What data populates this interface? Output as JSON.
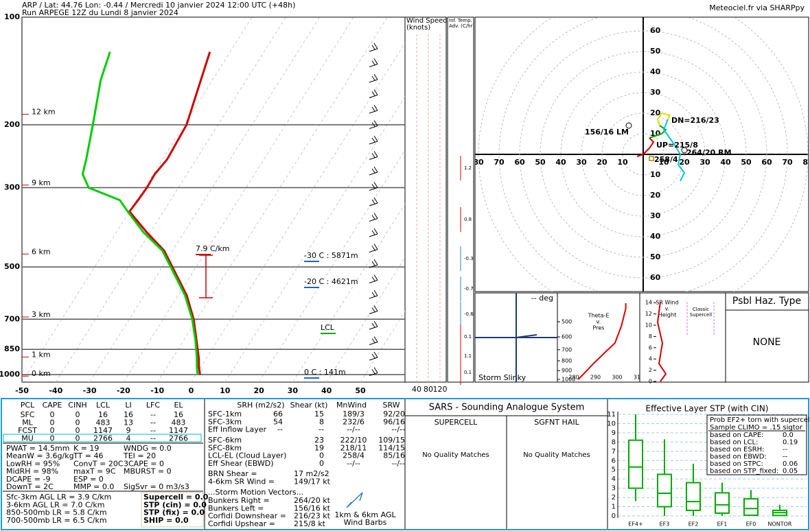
{
  "header": {
    "title": "ARP / Lat: 44.76 Lon: -0.44 / Mercredi 10 janvier 2024 12:00 UTC (+48h)",
    "run": "Run ARPEGE 12Z du Lundi 8 janvier 2024",
    "credit": "Meteociel.fr via SHARPpy"
  },
  "chart_data": [
    {
      "type": "skewt",
      "log_y": true,
      "ylim": [
        1050,
        100
      ],
      "yticks": [
        100,
        200,
        300,
        500,
        700,
        850,
        1000
      ],
      "xlim": [
        -50,
        50
      ],
      "xticks": [
        -50,
        -40,
        -30,
        -20,
        -10,
        0,
        10,
        20,
        30,
        40,
        50
      ],
      "pressure": [
        1000,
        950,
        900,
        850,
        800,
        700,
        600,
        500,
        450,
        400,
        350,
        325,
        300,
        275,
        250,
        200,
        150,
        125
      ],
      "series": [
        {
          "color": "#cc0000",
          "values": [
            1.2,
            -0.6,
            -2.2,
            -4.2,
            -6.3,
            -11,
            -17.5,
            -27,
            -32.5,
            -41,
            -50,
            -49.6,
            -49.3,
            -49.5,
            -48.6,
            -49.3,
            -53.4,
            -56
          ]
        },
        {
          "color": "#00cc00",
          "values": [
            0.5,
            -1.2,
            -2.8,
            -4.6,
            -6.6,
            -11.4,
            -18,
            -27.5,
            -33,
            -42,
            -50.5,
            -55,
            -66.5,
            -70.8,
            -72.5,
            -77,
            -83,
            -85.5
          ]
        }
      ],
      "height_labels": [
        {
          "value": 187,
          "label": "12 km"
        },
        {
          "value": 295,
          "label": "9 km"
        },
        {
          "value": 460,
          "label": "6 km"
        },
        {
          "value": 690,
          "label": "3 km"
        },
        {
          "value": 893,
          "label": "1 km"
        },
        {
          "value": 1010,
          "label": "0 km"
        }
      ],
      "annotations": [
        "7.9 C/km",
        "-30 C : 5871m",
        "-20 C : 4621m",
        "0 C : 141m",
        "LCL"
      ]
    },
    {
      "type": "hodograph",
      "rings": [
        10,
        20,
        30,
        40,
        50,
        60,
        70,
        80
      ],
      "series": [
        {
          "color": "#cc0000",
          "u": [
            -3,
            0,
            3,
            5,
            3
          ],
          "v": [
            -1,
            0,
            3,
            6,
            8
          ]
        },
        {
          "color": "#00aa00",
          "u": [
            3,
            6,
            9,
            11,
            8
          ],
          "v": [
            8,
            9,
            10,
            12,
            14
          ]
        },
        {
          "color": "#dddd00",
          "u": [
            8,
            7,
            9,
            13,
            12
          ],
          "v": [
            14,
            17,
            20,
            19,
            17
          ]
        },
        {
          "color": "#00c8dc",
          "u": [
            12,
            10,
            15,
            18,
            17,
            20,
            18
          ],
          "v": [
            17,
            12,
            5,
            0,
            -5,
            -9,
            -13
          ]
        }
      ],
      "markers": [
        {
          "label": "156/16 LM",
          "u": -7,
          "v": 14
        },
        {
          "label": "264/20 RM",
          "u": 20,
          "v": 2
        },
        {
          "label": "258/4",
          "u": 4,
          "v": -2
        }
      ],
      "annotations": [
        "DN=216/23",
        "UP=215/8"
      ]
    },
    {
      "type": "box",
      "title": "Effective Layer STP (with CIN)",
      "color": "#00aa00",
      "ylim": [
        0,
        11
      ],
      "yticks": [
        0,
        1,
        2,
        3,
        4,
        5,
        6,
        7,
        8,
        9,
        10,
        11
      ],
      "categories": [
        "EF4+",
        "EF3",
        "EF2",
        "EF1",
        "EF0",
        "NONTOR"
      ],
      "whislo": [
        1.6,
        0,
        0,
        0,
        0,
        0
      ],
      "q1": [
        3.0,
        1.0,
        0.6,
        0.3,
        0.07,
        0.05
      ],
      "med": [
        5.3,
        2.45,
        1.55,
        1.2,
        0.8,
        0.35
      ],
      "q3": [
        8.2,
        4.5,
        3.6,
        2.5,
        1.85,
        0.6
      ],
      "whishi": [
        11,
        8.3,
        5.65,
        3.6,
        2.8,
        1.2
      ],
      "legend": {
        "lines": [
          "Prob EF2+ torn with supercell",
          "Sample CLIMO = .15 sigtor"
        ],
        "rows": [
          [
            "based on CAPE:",
            "0.0"
          ],
          [
            "based on LCL:",
            "0.19"
          ],
          [
            "based on ESRH:",
            "--"
          ],
          [
            "based on EBWD:",
            "--"
          ],
          [
            "based on STPC:",
            "0.06"
          ],
          [
            "based on STP_fixed:",
            "0.05"
          ]
        ],
        "row_colors": [
          "#d8c8b0",
          "#a08000",
          "#d8c8b0",
          "#d8c8b0",
          "#d8c8b0",
          "#d8c8b0"
        ]
      }
    },
    {
      "type": "thetae",
      "title": [
        "Theta-E",
        "v.",
        "Pres"
      ],
      "xlim": [
        280,
        310
      ],
      "xticks": [
        280,
        290,
        300,
        310
      ],
      "yticks": [
        500,
        600,
        700,
        800,
        900,
        1000
      ],
      "color": "#dd0000",
      "pressure": [
        400,
        427,
        525,
        645,
        730,
        828,
        937,
        1000
      ],
      "values": [
        304,
        304,
        302,
        299,
        294,
        289,
        284.5,
        282
      ]
    }
  ],
  "wind_panel": {
    "title": [
      "Wind Speed",
      "(knots)"
    ],
    "ticks": [
      40,
      80,
      120
    ]
  },
  "advection": {
    "title": [
      "Inf. Temp.",
      "Adv. (C/hr)"
    ],
    "values": [
      1.2,
      0.8,
      -0.3,
      -0.7,
      -0.6,
      0.1,
      1.1,
      0.1
    ]
  },
  "slinky": {
    "title": "Storm Slinky",
    "deg": "-- deg"
  },
  "sr_wind": {
    "title": [
      "SR Wind",
      "v.",
      "Height"
    ],
    "ticks": [
      14,
      12,
      10,
      8,
      6,
      4,
      2,
      0
    ],
    "classic": [
      "Classic",
      "Supercell"
    ]
  },
  "hazard": {
    "title": "Psbl Haz. Type",
    "value": "NONE"
  },
  "thermo": {
    "header": [
      "PCL",
      "CAPE",
      "CINH",
      "LCL",
      "LI",
      "LFC",
      "EL"
    ],
    "rows": [
      [
        "SFC",
        "0",
        "0",
        "16",
        "16",
        "--",
        "16"
      ],
      [
        "ML",
        "0",
        "0",
        "483",
        "13",
        "--",
        "483"
      ],
      [
        "FCST",
        "0",
        "0",
        "1147",
        "9",
        "--",
        "1147"
      ],
      [
        "MU",
        "0",
        "0",
        "2766",
        "4",
        "--",
        "2766"
      ]
    ],
    "indices": [
      [
        "PWAT = 14.5mm",
        "K = 19",
        "WNDG = 0.0"
      ],
      [
        "MeanW = 3.6g/kg",
        "TT = 46",
        "TEI = 20"
      ],
      [
        "LowRH = 95%",
        "ConvT = 20C",
        "3CAPE = 0"
      ],
      [
        "MidRH = 98%",
        "maxT = 9C",
        "MBURST = 0"
      ],
      [
        "DCAPE = -9",
        "ESP = 0"
      ],
      [
        "DownT = 2C",
        "MMP = 0.0",
        "SigSvr = 0 m3/s3"
      ]
    ],
    "lapse_rates": [
      "Sfc-3km AGL LR = 3.9 C/km",
      "3-6km AGL LR = 7.0 C/km",
      "850-500mb LR = 5.8 C/km",
      "700-500mb LR = 6.5 C/km"
    ],
    "composites": [
      "Supercell = 0.0",
      "STP (cin) = 0.0",
      "STP (fix) = 0.0",
      "SHIP = 0.0"
    ]
  },
  "kinematics": {
    "header": [
      "SRH (m2/s2)",
      "Shear (kt)",
      "MnWind",
      "SRW"
    ],
    "rows_a": [
      [
        "SFC-1km",
        "66",
        "15",
        "189/3",
        "92/20"
      ],
      [
        "SFC-3km",
        "54",
        "8",
        "232/6",
        "96/16"
      ],
      [
        "Eff Inflow Layer",
        "--",
        "--",
        "--/--",
        "--/--"
      ]
    ],
    "rows_b": [
      [
        "SFC-6km",
        null,
        "23",
        "222/10",
        "109/15"
      ],
      [
        "SFC-8km",
        null,
        "19",
        "218/11",
        "114/15"
      ],
      [
        "LCL-EL (Cloud Layer)",
        null,
        "0",
        "258/4",
        "85/16"
      ],
      [
        "Eff Shear (EBWD)",
        null,
        "0",
        "--/--",
        "--/--"
      ]
    ],
    "other": [
      [
        "BRN Shear =",
        "17 m2/s2"
      ],
      [
        "4-6km SR Wind =",
        "149/17 kt"
      ]
    ],
    "motion_title": "...Storm Motion Vectors...",
    "motion": [
      [
        "Bunkers Right =",
        "264/20 kt"
      ],
      [
        "Bunkers Left =",
        "156/16 kt"
      ],
      [
        "Corfidi Downshear =",
        "216/23 kt"
      ],
      [
        "Corfidi Upshear =",
        "215/8 kt"
      ]
    ],
    "motion_colors": [
      "#2a90d0",
      "#e07070",
      "#000000",
      "#000000"
    ],
    "barbs_caption": [
      "1km & 6km AGL",
      "Wind Barbs"
    ]
  },
  "sars": {
    "title": "SARS - Sounding Analogue System",
    "supercell": "SUPERCELL",
    "hail": "SGFNT HAIL",
    "supercell_result": "No Quality Matches",
    "hail_result": "No Quality Matches"
  }
}
